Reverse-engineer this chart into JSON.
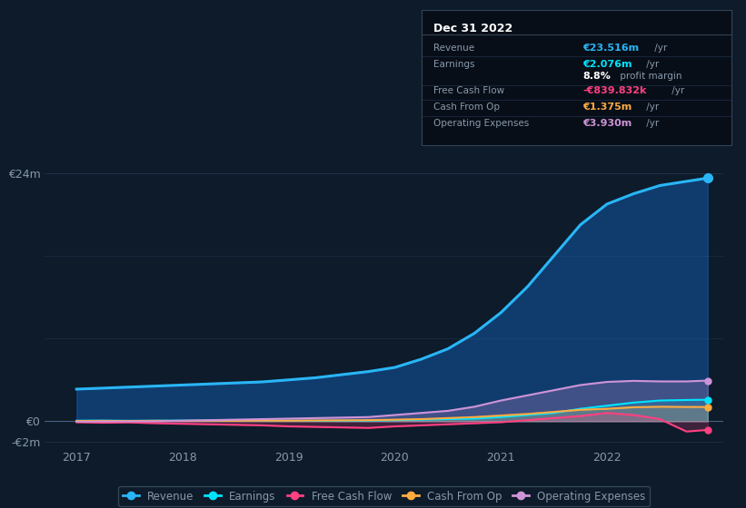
{
  "bg_color": "#0d1b2a",
  "plot_bg_color": "#0d1b2a",
  "grid_color": "#1e3048",
  "text_color": "#8899aa",
  "ylim": [
    -2.5,
    26
  ],
  "yticks": [
    -2,
    0,
    24
  ],
  "ytick_labels": [
    "-€2m",
    "€0",
    "€24m"
  ],
  "xlim": [
    2016.7,
    2023.1
  ],
  "xticks": [
    2017,
    2018,
    2019,
    2020,
    2021,
    2022
  ],
  "years": [
    2017.0,
    2017.25,
    2017.5,
    2017.75,
    2018.0,
    2018.25,
    2018.5,
    2018.75,
    2019.0,
    2019.25,
    2019.5,
    2019.75,
    2020.0,
    2020.25,
    2020.5,
    2020.75,
    2021.0,
    2021.25,
    2021.5,
    2021.75,
    2022.0,
    2022.25,
    2022.5,
    2022.75,
    2022.95
  ],
  "revenue": [
    3.1,
    3.2,
    3.3,
    3.4,
    3.5,
    3.6,
    3.7,
    3.8,
    4.0,
    4.2,
    4.5,
    4.8,
    5.2,
    6.0,
    7.0,
    8.5,
    10.5,
    13.0,
    16.0,
    19.0,
    21.0,
    22.0,
    22.8,
    23.2,
    23.516
  ],
  "earnings": [
    0.05,
    0.06,
    0.04,
    0.05,
    0.06,
    0.05,
    0.07,
    0.06,
    0.05,
    0.04,
    0.05,
    0.06,
    0.1,
    0.15,
    0.2,
    0.25,
    0.4,
    0.6,
    0.8,
    1.2,
    1.5,
    1.8,
    2.0,
    2.05,
    2.076
  ],
  "free_cash_flow": [
    -0.1,
    -0.15,
    -0.12,
    -0.2,
    -0.25,
    -0.3,
    -0.35,
    -0.4,
    -0.5,
    -0.55,
    -0.6,
    -0.65,
    -0.5,
    -0.4,
    -0.3,
    -0.2,
    -0.1,
    0.1,
    0.3,
    0.5,
    0.8,
    0.6,
    0.2,
    -1.0,
    -0.839832
  ],
  "cash_from_op": [
    0.02,
    0.03,
    0.02,
    0.04,
    0.03,
    0.05,
    0.04,
    0.06,
    0.05,
    0.07,
    0.08,
    0.1,
    0.15,
    0.2,
    0.3,
    0.4,
    0.55,
    0.7,
    0.9,
    1.1,
    1.2,
    1.35,
    1.4,
    1.38,
    1.375
  ],
  "operating_expenses": [
    -0.05,
    -0.03,
    -0.02,
    -0.01,
    0.05,
    0.1,
    0.15,
    0.2,
    0.25,
    0.3,
    0.35,
    0.4,
    0.6,
    0.8,
    1.0,
    1.4,
    2.0,
    2.5,
    3.0,
    3.5,
    3.8,
    3.9,
    3.85,
    3.85,
    3.93
  ],
  "revenue_color": "#29b6f6",
  "earnings_color": "#00e5ff",
  "fcf_color": "#ff4081",
  "cashop_color": "#ffab40",
  "opex_color": "#ce93d8",
  "revenue_fill": "#1565c0",
  "legend_bg": "#0d1b2a",
  "legend_border": "#334455",
  "info_box_bg": "#080e18",
  "info_box_border": "#334455",
  "info_title": "Dec 31 2022"
}
